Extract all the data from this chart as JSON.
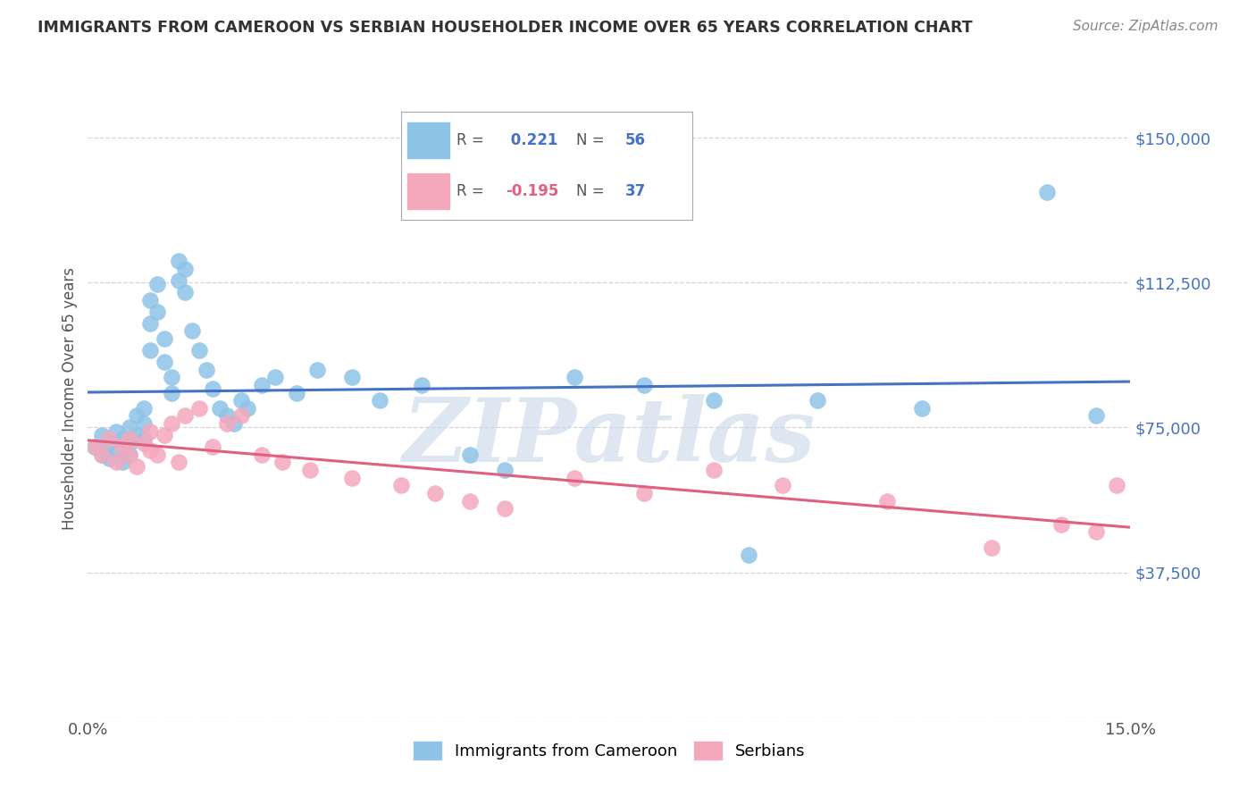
{
  "title": "IMMIGRANTS FROM CAMEROON VS SERBIAN HOUSEHOLDER INCOME OVER 65 YEARS CORRELATION CHART",
  "source": "Source: ZipAtlas.com",
  "ylabel": "Householder Income Over 65 years",
  "yticks": [
    0,
    37500,
    75000,
    112500,
    150000
  ],
  "ytick_labels": [
    "",
    "$37,500",
    "$75,000",
    "$112,500",
    "$150,000"
  ],
  "ylim": [
    0,
    165000
  ],
  "xlim": [
    0.0,
    0.15
  ],
  "legend1_r": " 0.221",
  "legend1_n": "56",
  "legend2_r": "-0.195",
  "legend2_n": "37",
  "blue_color": "#8ec4e8",
  "pink_color": "#f4a8bc",
  "line_blue": "#4472c4",
  "line_pink": "#e06080",
  "blue_scatter_x": [
    0.001,
    0.002,
    0.002,
    0.003,
    0.003,
    0.004,
    0.004,
    0.005,
    0.005,
    0.006,
    0.006,
    0.006,
    0.007,
    0.007,
    0.008,
    0.008,
    0.008,
    0.009,
    0.009,
    0.009,
    0.01,
    0.01,
    0.011,
    0.011,
    0.012,
    0.012,
    0.013,
    0.013,
    0.014,
    0.014,
    0.015,
    0.016,
    0.017,
    0.018,
    0.019,
    0.02,
    0.021,
    0.022,
    0.023,
    0.025,
    0.027,
    0.03,
    0.033,
    0.038,
    0.042,
    0.048,
    0.055,
    0.06,
    0.07,
    0.08,
    0.09,
    0.095,
    0.105,
    0.12,
    0.138,
    0.145
  ],
  "blue_scatter_y": [
    70000,
    73000,
    68000,
    71000,
    67000,
    74000,
    69000,
    72000,
    66000,
    75000,
    71000,
    68000,
    78000,
    73000,
    80000,
    76000,
    72000,
    95000,
    108000,
    102000,
    112000,
    105000,
    98000,
    92000,
    88000,
    84000,
    118000,
    113000,
    116000,
    110000,
    100000,
    95000,
    90000,
    85000,
    80000,
    78000,
    76000,
    82000,
    80000,
    86000,
    88000,
    84000,
    90000,
    88000,
    82000,
    86000,
    68000,
    64000,
    88000,
    86000,
    82000,
    42000,
    82000,
    80000,
    136000,
    78000
  ],
  "pink_scatter_x": [
    0.001,
    0.002,
    0.003,
    0.004,
    0.005,
    0.006,
    0.006,
    0.007,
    0.008,
    0.009,
    0.009,
    0.01,
    0.011,
    0.012,
    0.013,
    0.014,
    0.016,
    0.018,
    0.02,
    0.022,
    0.025,
    0.028,
    0.032,
    0.038,
    0.045,
    0.05,
    0.055,
    0.06,
    0.07,
    0.08,
    0.09,
    0.1,
    0.115,
    0.13,
    0.14,
    0.145,
    0.148
  ],
  "pink_scatter_y": [
    70000,
    68000,
    72000,
    66000,
    70000,
    68000,
    72000,
    65000,
    71000,
    69000,
    74000,
    68000,
    73000,
    76000,
    66000,
    78000,
    80000,
    70000,
    76000,
    78000,
    68000,
    66000,
    64000,
    62000,
    60000,
    58000,
    56000,
    54000,
    62000,
    58000,
    64000,
    60000,
    56000,
    44000,
    50000,
    48000,
    60000
  ],
  "watermark": "ZIPatlas",
  "background_color": "#ffffff",
  "grid_color": "#d5d5d5",
  "title_color": "#333333",
  "source_color": "#888888",
  "ylabel_color": "#555555",
  "ytick_color": "#4472c4",
  "xtick_color": "#555555"
}
